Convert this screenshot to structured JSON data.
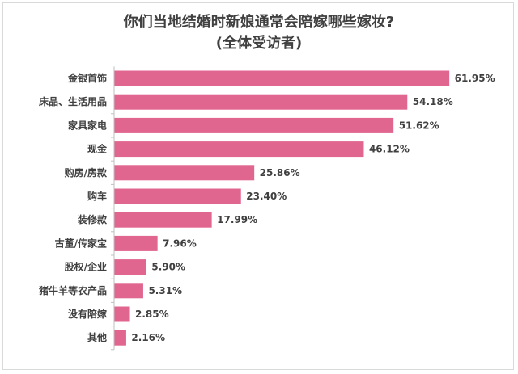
{
  "chart_data": {
    "type": "bar",
    "orientation": "horizontal",
    "title_line1": "你们当地结婚时新娘通常会陪嫁哪些嫁妆?",
    "title_line2": "(全体受访者)",
    "xlabel": "",
    "ylabel": "",
    "xlim": [
      0,
      62
    ],
    "grid": false,
    "legend": "none",
    "categories": [
      "金银首饰",
      "床品、生活用品",
      "家具家电",
      "现金",
      "购房/房款",
      "购车",
      "装修款",
      "古董/传家宝",
      "股权/企业",
      "猪牛羊等农产品",
      "没有陪嫁",
      "其他"
    ],
    "values": [
      61.95,
      54.18,
      51.62,
      46.12,
      25.86,
      23.4,
      17.99,
      7.96,
      5.9,
      5.31,
      2.85,
      2.16
    ],
    "value_labels": [
      "61.95%",
      "54.18%",
      "51.62%",
      "46.12%",
      "25.86%",
      "23.40%",
      "17.99%",
      "7.96%",
      "5.90%",
      "5.31%",
      "2.85%",
      "2.16%"
    ],
    "bar_color": "#e06690",
    "axis_color": "#bfbfbf"
  }
}
